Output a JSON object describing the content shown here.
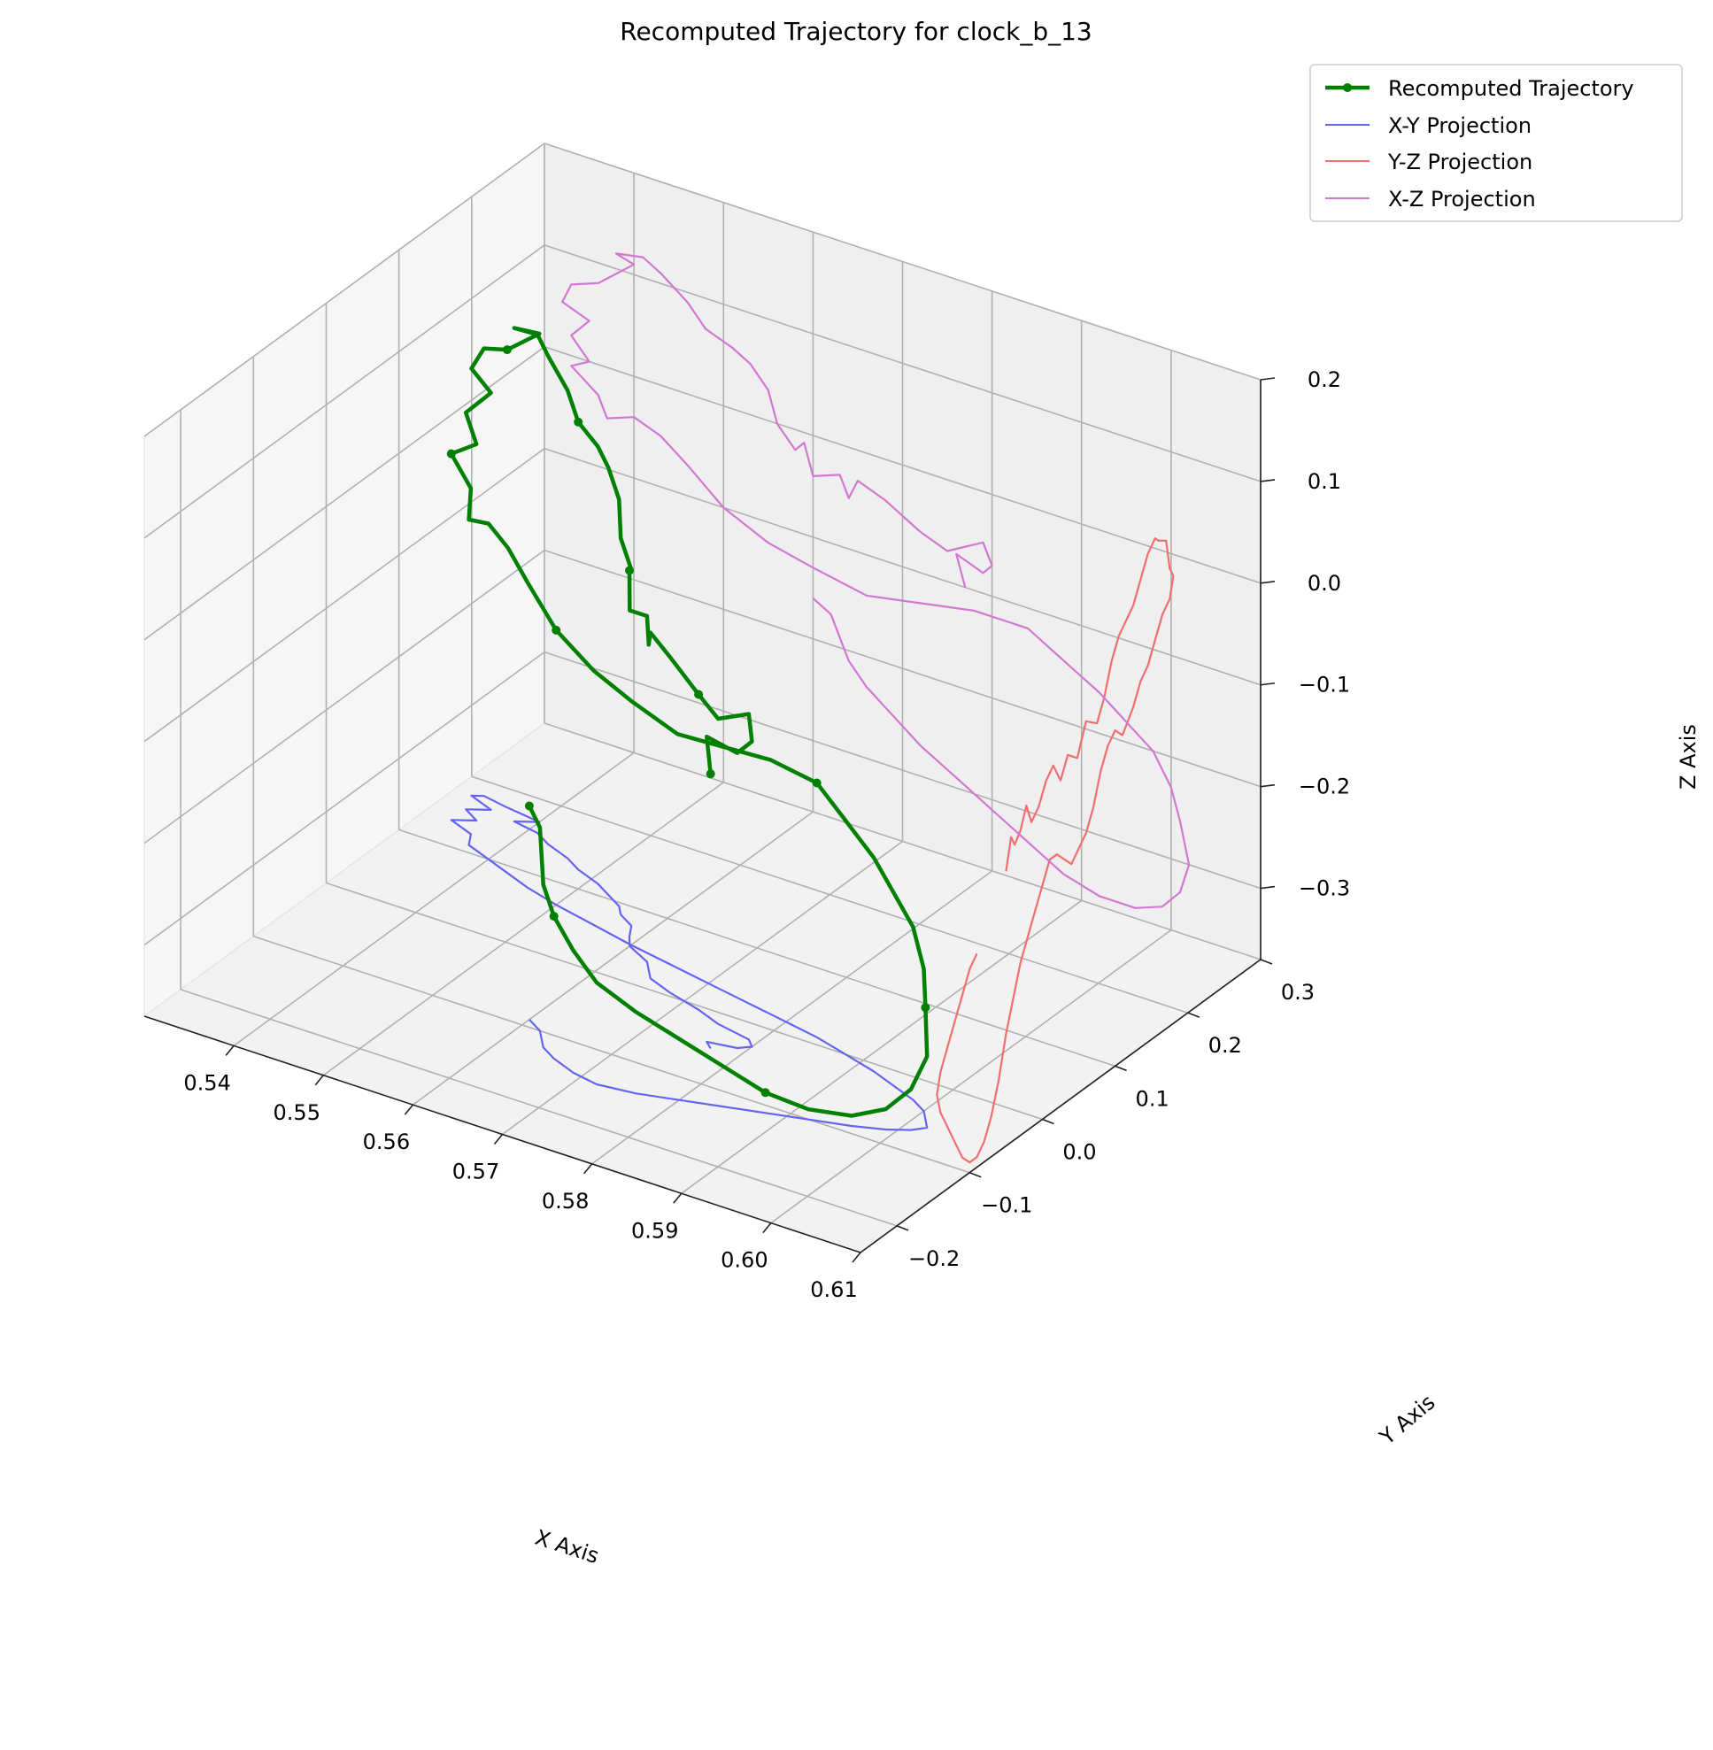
{
  "chart_data": {
    "type": "line3d",
    "title": "Recomputed Trajectory for clock_b_13",
    "xlabel": "X Axis",
    "ylabel": "Y Axis",
    "zlabel": "Z Axis",
    "xlim": [
      0.53,
      0.61
    ],
    "ylim": [
      -0.25,
      0.3
    ],
    "zlim": [
      -0.37,
      0.2
    ],
    "x_ticks": [
      0.54,
      0.55,
      0.56,
      0.57,
      0.58,
      0.59,
      0.6,
      0.61
    ],
    "x_tick_labels": [
      "0.54",
      "0.55",
      "0.56",
      "0.57",
      "0.58",
      "0.59",
      "0.60",
      "0.61"
    ],
    "y_ticks": [
      -0.2,
      -0.1,
      0.0,
      0.1,
      0.2,
      0.3
    ],
    "y_tick_labels": [
      "−0.2",
      "−0.1",
      "0.0",
      "0.1",
      "0.2",
      "0.3"
    ],
    "z_ticks": [
      -0.3,
      -0.2,
      -0.1,
      0.0,
      0.1,
      0.2
    ],
    "z_tick_labels": [
      "−0.3",
      "−0.2",
      "−0.1",
      "0.0",
      "0.1",
      "0.2"
    ],
    "grid": true,
    "legend_position": "top-right",
    "series": [
      {
        "name": "Recomputed Trajectory",
        "color": "#008000",
        "marker": "circle",
        "points": [
          [
            0.577,
            -0.05,
            -0.1
          ],
          [
            0.576,
            -0.043,
            -0.07
          ],
          [
            0.579,
            -0.038,
            -0.08
          ],
          [
            0.58,
            -0.03,
            -0.07
          ],
          [
            0.579,
            -0.022,
            -0.05
          ],
          [
            0.575,
            -0.015,
            -0.07
          ],
          [
            0.572,
            -0.005,
            -0.06
          ],
          [
            0.568,
            0.005,
            -0.04
          ],
          [
            0.565,
            0.015,
            -0.03
          ],
          [
            0.564,
            0.025,
            -0.05
          ],
          [
            0.563,
            0.035,
            -0.03
          ],
          [
            0.56,
            0.048,
            -0.04
          ],
          [
            0.559,
            0.06,
            -0.01
          ],
          [
            0.558,
            0.075,
            -0.02
          ],
          [
            0.556,
            0.085,
            0.0
          ],
          [
            0.555,
            0.095,
            0.03
          ],
          [
            0.553,
            0.105,
            0.05
          ],
          [
            0.551,
            0.115,
            0.06
          ],
          [
            0.548,
            0.125,
            0.07
          ],
          [
            0.546,
            0.135,
            0.09
          ],
          [
            0.543,
            0.145,
            0.11
          ],
          [
            0.541,
            0.155,
            0.12
          ],
          [
            0.538,
            0.16,
            0.115
          ],
          [
            0.54,
            0.17,
            0.11
          ],
          [
            0.536,
            0.175,
            0.08
          ],
          [
            0.533,
            0.18,
            0.07
          ],
          [
            0.532,
            0.175,
            0.05
          ],
          [
            0.535,
            0.165,
            0.04
          ],
          [
            0.533,
            0.155,
            0.02
          ],
          [
            0.535,
            0.145,
            0.0
          ],
          [
            0.533,
            0.135,
            -0.01
          ],
          [
            0.536,
            0.125,
            -0.03
          ],
          [
            0.537,
            0.11,
            -0.05
          ],
          [
            0.54,
            0.1,
            -0.04
          ],
          [
            0.543,
            0.09,
            -0.05
          ],
          [
            0.546,
            0.08,
            -0.07
          ],
          [
            0.55,
            0.07,
            -0.1
          ],
          [
            0.555,
            0.06,
            -0.12
          ],
          [
            0.56,
            0.05,
            -0.13
          ],
          [
            0.566,
            0.04,
            -0.14
          ],
          [
            0.572,
            0.03,
            -0.13
          ],
          [
            0.578,
            0.02,
            -0.12
          ],
          [
            0.584,
            0.01,
            -0.12
          ],
          [
            0.588,
            0.0,
            -0.14
          ],
          [
            0.592,
            -0.01,
            -0.16
          ],
          [
            0.595,
            -0.02,
            -0.18
          ],
          [
            0.598,
            -0.03,
            -0.2
          ],
          [
            0.6,
            -0.04,
            -0.23
          ],
          [
            0.601,
            -0.05,
            -0.26
          ],
          [
            0.602,
            -0.06,
            -0.3
          ],
          [
            0.601,
            -0.07,
            -0.33
          ],
          [
            0.599,
            -0.08,
            -0.35
          ],
          [
            0.596,
            -0.09,
            -0.36
          ],
          [
            0.592,
            -0.1,
            -0.36
          ],
          [
            0.588,
            -0.11,
            -0.35
          ],
          [
            0.584,
            -0.12,
            -0.33
          ],
          [
            0.58,
            -0.13,
            -0.31
          ],
          [
            0.576,
            -0.14,
            -0.29
          ],
          [
            0.572,
            -0.145,
            -0.27
          ],
          [
            0.569,
            -0.14,
            -0.25
          ],
          [
            0.566,
            -0.13,
            -0.23
          ],
          [
            0.564,
            -0.12,
            -0.21
          ],
          [
            0.563,
            -0.11,
            -0.19
          ],
          [
            0.562,
            -0.1,
            -0.17
          ],
          [
            0.56,
            -0.09,
            -0.16
          ]
        ]
      },
      {
        "name": "X-Y Projection",
        "color": "#6464f0",
        "projection": "xy"
      },
      {
        "name": "Y-Z Projection",
        "color": "#f06e6e",
        "projection": "yz"
      },
      {
        "name": "X-Z Projection",
        "color": "#d278d2",
        "projection": "xz"
      }
    ]
  }
}
